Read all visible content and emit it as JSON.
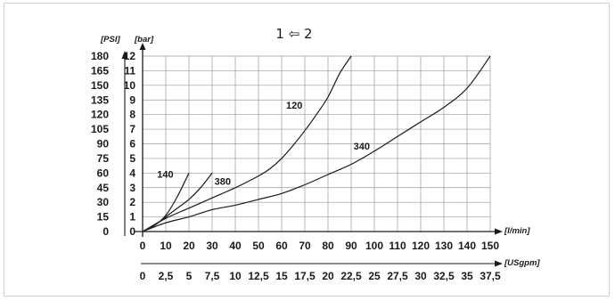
{
  "chart_data": {
    "type": "line",
    "title": "1 ⇦ 2",
    "xlabel": "[l/min]",
    "xlabel_secondary": "[USgpm]",
    "ylabel": "[bar]",
    "ylabel_secondary": "[PSI]",
    "xlim": [
      0,
      150
    ],
    "ylim": [
      0,
      12
    ],
    "grid": true,
    "x_ticks": [
      "0",
      "10",
      "20",
      "30",
      "40",
      "50",
      "60",
      "70",
      "80",
      "90",
      "100",
      "110",
      "120",
      "130",
      "140",
      "150"
    ],
    "x_ticks_secondary": [
      "0",
      "2,5",
      "5",
      "7,5",
      "10",
      "12,5",
      "15",
      "17,5",
      "20",
      "22,5",
      "25",
      "27,5",
      "30",
      "32,5",
      "35",
      "37,5"
    ],
    "y_ticks": [
      "0",
      "1",
      "2",
      "3",
      "4",
      "5",
      "6",
      "7",
      "8",
      "9",
      "10",
      "11",
      "12"
    ],
    "y_ticks_secondary": [
      "0",
      "15",
      "30",
      "45",
      "60",
      "75",
      "90",
      "105",
      "120",
      "135",
      "150",
      "165",
      "180"
    ],
    "series": [
      {
        "name": "140",
        "x": [
          0,
          5,
          10,
          15,
          20
        ],
        "y": [
          0,
          0.4,
          1.1,
          2.4,
          4.0
        ]
      },
      {
        "name": "380",
        "x": [
          0,
          5,
          10,
          15,
          20,
          25,
          30
        ],
        "y": [
          0,
          0.4,
          1.0,
          1.6,
          2.2,
          3.0,
          4.0
        ]
      },
      {
        "name": "120",
        "x": [
          0,
          10,
          20,
          30,
          40,
          50,
          55,
          60,
          65,
          70,
          75,
          80,
          85,
          90
        ],
        "y": [
          0,
          0.9,
          1.6,
          2.3,
          3.0,
          3.8,
          4.3,
          5.0,
          5.9,
          6.9,
          8.0,
          9.2,
          10.8,
          12.0
        ]
      },
      {
        "name": "340",
        "x": [
          0,
          10,
          20,
          30,
          40,
          50,
          60,
          70,
          80,
          90,
          100,
          110,
          120,
          130,
          140,
          150
        ],
        "y": [
          0,
          0.6,
          1.0,
          1.5,
          1.8,
          2.2,
          2.6,
          3.2,
          3.9,
          4.6,
          5.5,
          6.5,
          7.5,
          8.5,
          9.8,
          12.0
        ]
      }
    ]
  }
}
